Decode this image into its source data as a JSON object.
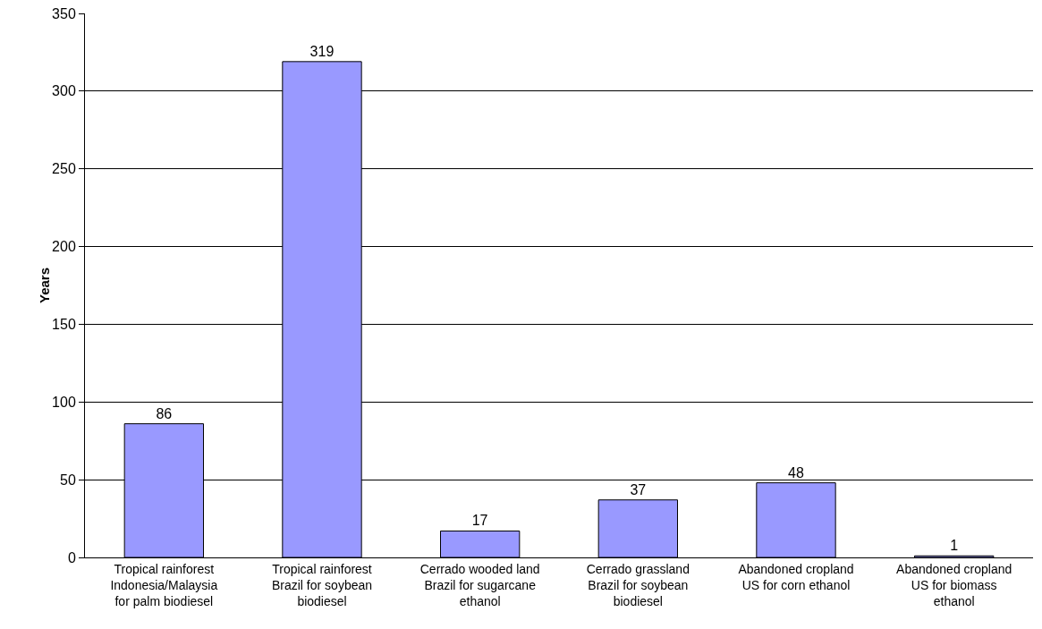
{
  "chart_data": {
    "type": "bar",
    "ylabel": "Years",
    "categories": [
      "Tropical rainforest\nIndonesia/Malaysia\nfor palm biodiesel",
      "Tropical rainforest\nBrazil for soybean\nbiodiesel",
      "Cerrado wooded land\nBrazil for sugarcane\nethanol",
      "Cerrado grassland\nBrazil for soybean\nbiodiesel",
      "Abandoned cropland\nUS for corn ethanol",
      "Abandoned cropland\nUS for biomass\nethanol"
    ],
    "values": [
      86,
      319,
      17,
      37,
      48,
      1
    ],
    "color": "#9999ff",
    "ylim": [
      0,
      350
    ],
    "yticks": [
      0,
      50,
      100,
      150,
      200,
      250,
      300,
      350
    ],
    "grid": "y",
    "legend": false,
    "data_labels": true
  }
}
